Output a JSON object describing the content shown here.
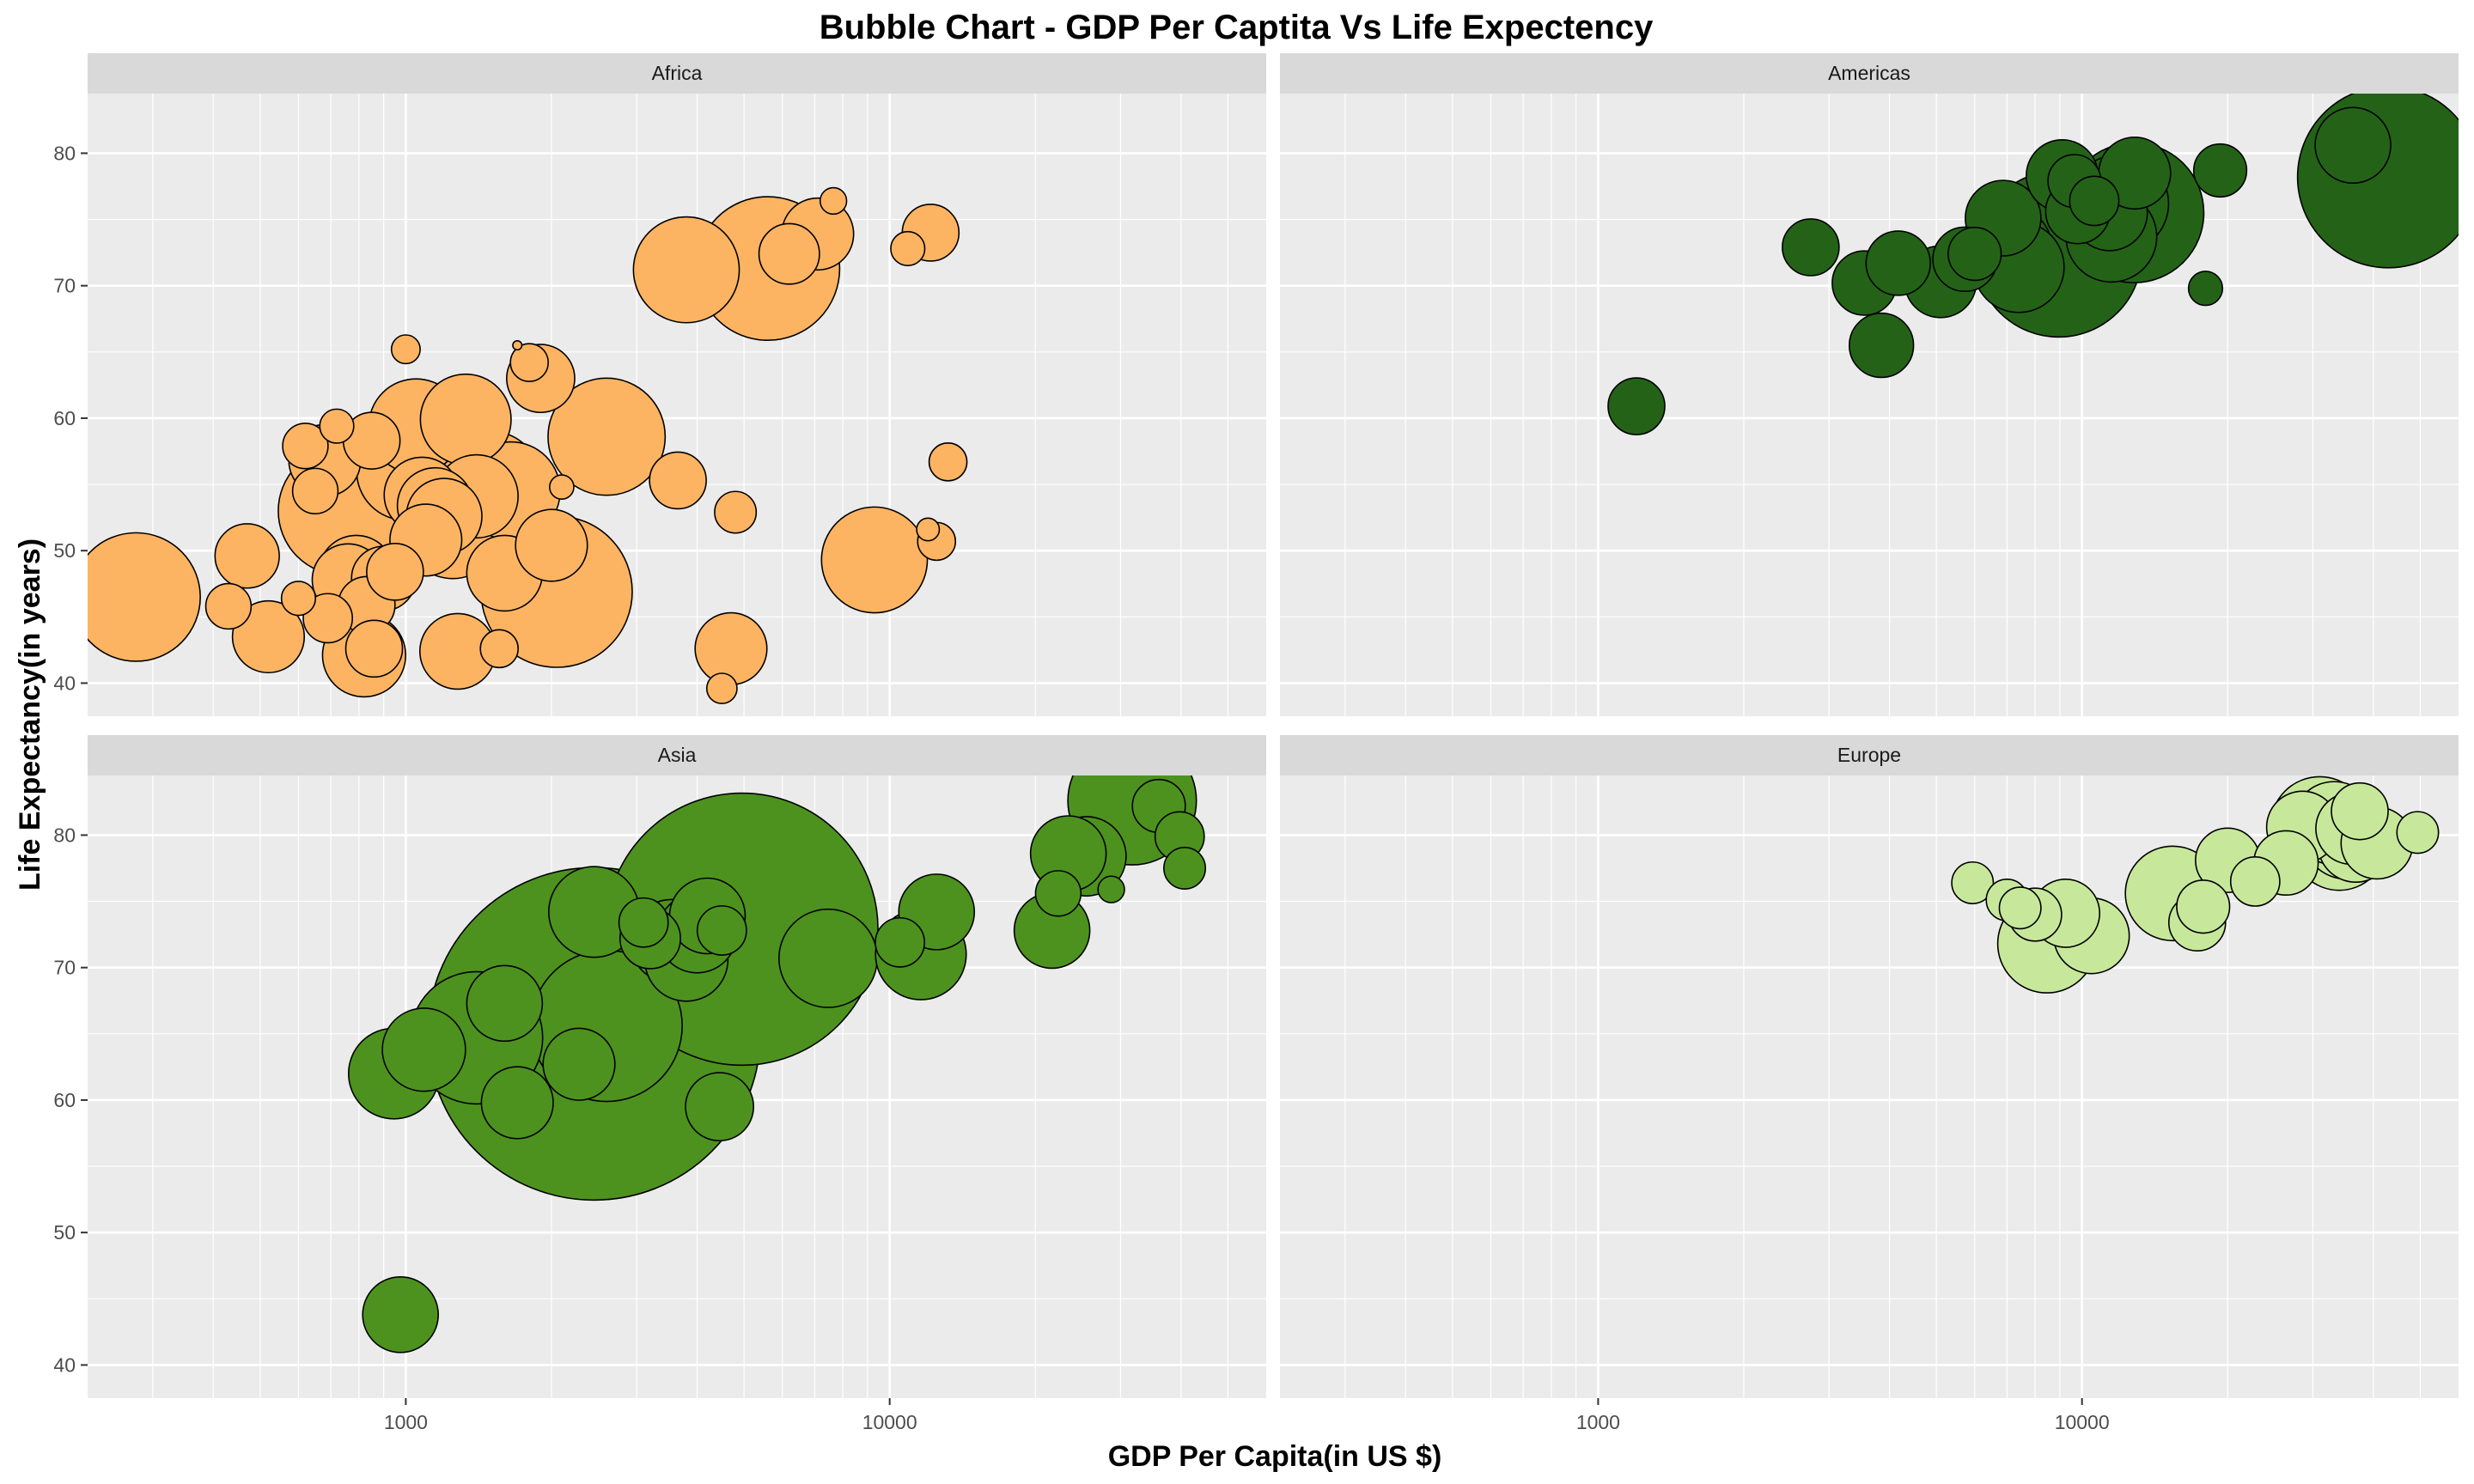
{
  "chart_data": {
    "type": "scatter",
    "title": "Bubble Chart - GDP Per Captita Vs Life Expectency",
    "xlabel": "GDP Per Capita(in US $)",
    "ylabel": "Life Expectancy(in years)",
    "x_scale": "log10",
    "xlim": [
      220,
      60000
    ],
    "ylim": [
      37.5,
      84.5
    ],
    "x_ticks": [
      1000,
      10000
    ],
    "x_tick_labels": [
      "1000",
      "10000"
    ],
    "y_ticks": [
      40,
      50,
      60,
      70,
      80
    ],
    "y_tick_labels": [
      "40",
      "50",
      "60",
      "70",
      "80"
    ],
    "grid": true,
    "legend": "none",
    "point_fields": [
      "gdp_per_capita",
      "life_expectancy",
      "size"
    ],
    "panels": [
      {
        "name": "Africa",
        "color": "#FDB462",
        "points": [
          [
            277,
            46.5,
            1.7
          ],
          [
            430,
            45.8,
            0.6
          ],
          [
            470,
            49.6,
            0.85
          ],
          [
            520,
            43.5,
            0.95
          ],
          [
            600,
            46.4,
            0.45
          ],
          [
            620,
            57.9,
            0.6
          ],
          [
            650,
            54.5,
            0.6
          ],
          [
            680,
            56.8,
            0.95
          ],
          [
            690,
            44.9,
            0.65
          ],
          [
            720,
            59.4,
            0.45
          ],
          [
            740,
            53.0,
            1.7
          ],
          [
            760,
            47.8,
            0.95
          ],
          [
            790,
            48.3,
            1.0
          ],
          [
            820,
            42.1,
            1.1
          ],
          [
            830,
            45.9,
            0.75
          ],
          [
            850,
            58.3,
            0.75
          ],
          [
            860,
            42.6,
            0.75
          ],
          [
            900,
            47.9,
            0.85
          ],
          [
            950,
            48.4,
            0.75
          ],
          [
            1000,
            65.2,
            0.38
          ],
          [
            1000,
            56.0,
            1.3
          ],
          [
            1050,
            59.4,
            1.25
          ],
          [
            1080,
            54.2,
            1.0
          ],
          [
            1100,
            50.8,
            0.95
          ],
          [
            1150,
            53.4,
            1.0
          ],
          [
            1200,
            52.6,
            1.0
          ],
          [
            1250,
            51.6,
            1.3
          ],
          [
            1280,
            42.4,
            1.0
          ],
          [
            1330,
            59.9,
            1.2
          ],
          [
            1400,
            54.1,
            1.1
          ],
          [
            1500,
            55.3,
            1.3
          ],
          [
            1560,
            42.6,
            0.5
          ],
          [
            1600,
            48.3,
            1.0
          ],
          [
            1650,
            54.5,
            1.3
          ],
          [
            1700,
            65.5,
            0.12
          ],
          [
            1800,
            64.2,
            0.5
          ],
          [
            1900,
            63.0,
            0.9
          ],
          [
            2000,
            50.4,
            0.95
          ],
          [
            2050,
            46.9,
            2.0
          ],
          [
            2100,
            54.8,
            0.32
          ],
          [
            2600,
            58.6,
            1.55
          ],
          [
            3650,
            55.3,
            0.75
          ],
          [
            3800,
            71.2,
            1.4
          ],
          [
            4500,
            39.6,
            0.4
          ],
          [
            4700,
            42.6,
            0.95
          ],
          [
            4800,
            52.9,
            0.55
          ],
          [
            5600,
            71.3,
            1.9
          ],
          [
            6200,
            72.4,
            0.8
          ],
          [
            7100,
            73.9,
            0.95
          ],
          [
            7650,
            76.4,
            0.35
          ],
          [
            9300,
            49.3,
            1.4
          ],
          [
            10900,
            72.8,
            0.45
          ],
          [
            12000,
            51.6,
            0.3
          ],
          [
            12150,
            74.0,
            0.75
          ],
          [
            12500,
            50.7,
            0.5
          ],
          [
            13200,
            56.7,
            0.5
          ]
        ]
      },
      {
        "name": "Americas",
        "color": "#246317",
        "points": [
          [
            1200,
            60.9,
            0.75
          ],
          [
            2750,
            72.9,
            0.75
          ],
          [
            3550,
            70.2,
            0.85
          ],
          [
            3850,
            65.5,
            0.85
          ],
          [
            4170,
            71.7,
            0.85
          ],
          [
            5100,
            70.3,
            0.95
          ],
          [
            5730,
            72.0,
            0.85
          ],
          [
            6000,
            72.4,
            0.7
          ],
          [
            6870,
            75.1,
            1.0
          ],
          [
            7000,
            72.7,
            1.2
          ],
          [
            7400,
            71.4,
            1.2
          ],
          [
            8950,
            72.4,
            2.2
          ],
          [
            9100,
            78.3,
            0.95
          ],
          [
            9645,
            77.9,
            0.7
          ],
          [
            9800,
            75.6,
            0.85
          ],
          [
            10600,
            76.4,
            0.65
          ],
          [
            11400,
            75.5,
            1.0
          ],
          [
            11950,
            76.2,
            1.3
          ],
          [
            12800,
            75.5,
            1.85
          ],
          [
            12850,
            78.5,
            0.95
          ],
          [
            11500,
            73.7,
            1.2
          ],
          [
            18000,
            69.8,
            0.45
          ],
          [
            19300,
            78.7,
            0.7
          ],
          [
            36300,
            80.6,
            1.0
          ],
          [
            42950,
            78.2,
            2.4
          ]
        ]
      },
      {
        "name": "Asia",
        "color": "#4D921E",
        "points": [
          [
            975,
            43.8,
            1.0
          ],
          [
            945,
            62.0,
            1.2
          ],
          [
            1090,
            63.8,
            1.1
          ],
          [
            1400,
            64.7,
            1.75
          ],
          [
            1600,
            67.3,
            1.0
          ],
          [
            1700,
            59.8,
            0.95
          ],
          [
            2450,
            65.0,
            4.4
          ],
          [
            2450,
            74.2,
            1.2
          ],
          [
            2600,
            65.6,
            2.0
          ],
          [
            2280,
            62.7,
            0.95
          ],
          [
            3100,
            73.4,
            0.65
          ],
          [
            3200,
            72.2,
            0.8
          ],
          [
            3540,
            72.0,
            1.1
          ],
          [
            3800,
            70.6,
            1.1
          ],
          [
            4000,
            72.6,
            1.05
          ],
          [
            4200,
            73.9,
            1.0
          ],
          [
            4500,
            72.8,
            0.65
          ],
          [
            4950,
            72.9,
            3.6
          ],
          [
            4450,
            59.5,
            0.9
          ],
          [
            7460,
            70.7,
            1.3
          ],
          [
            10500,
            71.9,
            0.65
          ],
          [
            11600,
            71.0,
            1.2
          ],
          [
            12500,
            74.2,
            1.0
          ],
          [
            21650,
            72.8,
            1.0
          ],
          [
            22300,
            75.6,
            0.6
          ],
          [
            23400,
            78.6,
            1.0
          ],
          [
            25500,
            78.4,
            1.05
          ],
          [
            28700,
            75.9,
            0.35
          ],
          [
            31700,
            82.6,
            1.7
          ],
          [
            36000,
            82.2,
            0.7
          ],
          [
            39750,
            79.9,
            0.65
          ],
          [
            40700,
            77.5,
            0.55
          ]
        ]
      },
      {
        "name": "Europe",
        "color": "#C7E89B",
        "points": [
          [
            5940,
            76.4,
            0.55
          ],
          [
            7000,
            75.1,
            0.55
          ],
          [
            7450,
            74.5,
            0.55
          ],
          [
            8000,
            74.0,
            0.7
          ],
          [
            8460,
            71.8,
            1.3
          ],
          [
            9250,
            74.1,
            0.9
          ],
          [
            10460,
            72.4,
            1.0
          ],
          [
            15390,
            75.6,
            1.25
          ],
          [
            17300,
            73.4,
            0.75
          ],
          [
            17800,
            74.6,
            0.7
          ],
          [
            20000,
            78.1,
            0.85
          ],
          [
            22800,
            76.5,
            0.65
          ],
          [
            26400,
            77.9,
            0.85
          ],
          [
            28560,
            80.6,
            0.95
          ],
          [
            31000,
            80.7,
            1.3
          ],
          [
            33200,
            80.9,
            1.1
          ],
          [
            35300,
            80.1,
            1.2
          ],
          [
            37500,
            81.8,
            0.75
          ],
          [
            36100,
            80.5,
            0.95
          ],
          [
            40700,
            79.4,
            0.95
          ],
          [
            36800,
            79.3,
            1.0
          ],
          [
            34000,
            79.4,
            1.25
          ],
          [
            49400,
            80.2,
            0.55
          ]
        ]
      }
    ]
  }
}
